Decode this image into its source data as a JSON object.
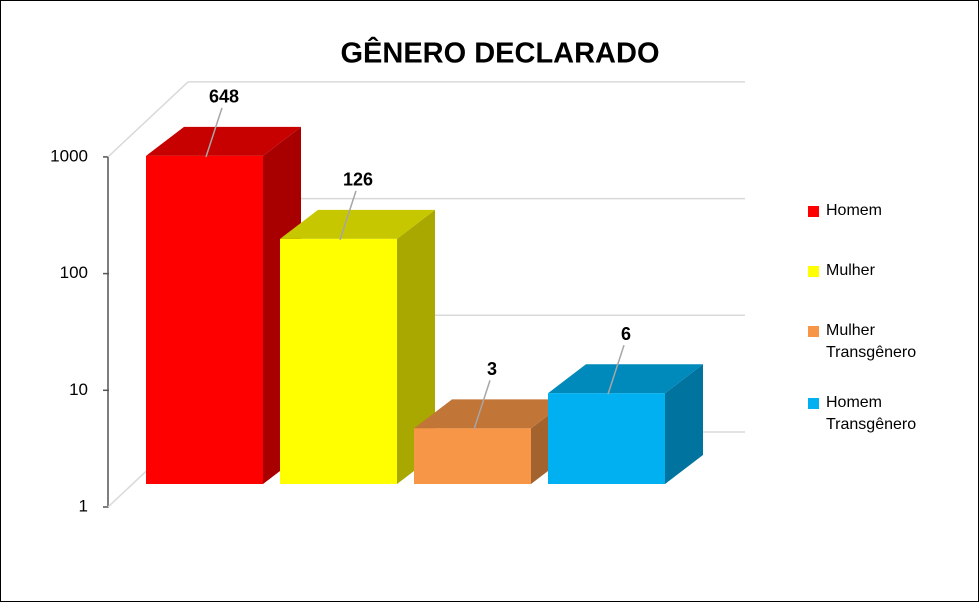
{
  "chart_data": {
    "type": "bar3d",
    "title": "GÊNERO DECLARADO",
    "log_scale": true,
    "ylim": [
      1,
      1000
    ],
    "yticks": [
      1,
      10,
      100,
      1000
    ],
    "series": [
      {
        "name": "Homem",
        "color": "#ff0000",
        "values": [
          648
        ]
      },
      {
        "name": "Mulher",
        "color": "#ffff00",
        "values": [
          126
        ]
      },
      {
        "name": "Mulher Transgênero",
        "color": "#f79646",
        "values": [
          3
        ]
      },
      {
        "name": "Homem Transgênero",
        "color": "#00b0f0",
        "values": [
          6
        ]
      }
    ],
    "grid": true,
    "legend": "right"
  }
}
